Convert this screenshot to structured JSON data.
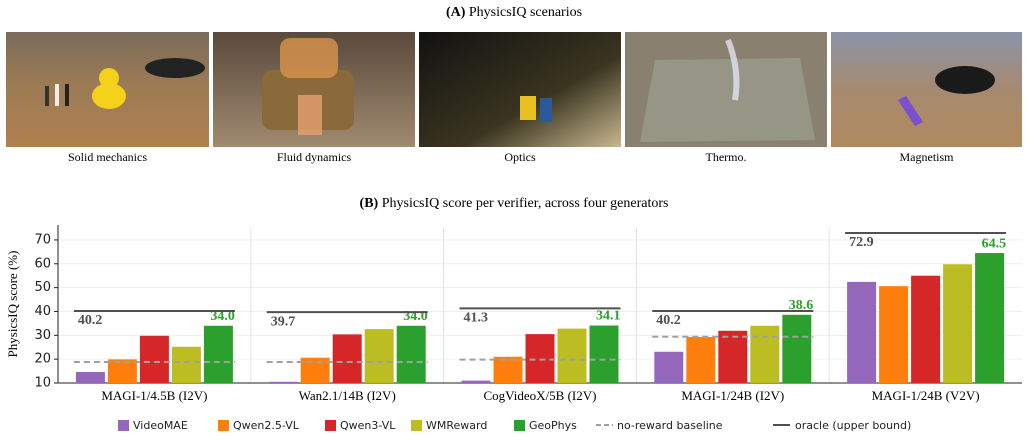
{
  "scenarios": {
    "panel_label": "(A)",
    "title": "PhysicsIQ scenarios",
    "items": [
      "Solid mechanics",
      "Fluid dynamics",
      "Optics",
      "Thermo.",
      "Magnetism"
    ]
  },
  "chart_data": {
    "type": "bar",
    "panel_label": "(B)",
    "title": "PhysicsIQ score per verifier, across four generators",
    "y_label": "PhysicsIQ score (%)",
    "categories": [
      "MAGI-1/4.5B (I2V)",
      "Wan2.1/14B (I2V)",
      "CogVideoX/5B (I2V)",
      "MAGI-1/24B (I2V)",
      "MAGI-1/24B (V2V)"
    ],
    "series": [
      {
        "name": "VideoMAE",
        "color": "#9467bd",
        "mark": "bar",
        "values": [
          14.6,
          10.5,
          11.0,
          23.1,
          52.4
        ]
      },
      {
        "name": "Qwen2.5-VL",
        "color": "#ff7f0e",
        "mark": "bar",
        "values": [
          19.9,
          20.6,
          21.0,
          29.3,
          50.6
        ]
      },
      {
        "name": "Qwen3-VL",
        "color": "#d62728",
        "mark": "bar",
        "values": [
          29.8,
          30.4,
          30.5,
          31.9,
          55.0
        ]
      },
      {
        "name": "WMReward",
        "color": "#bcbd22",
        "mark": "bar",
        "values": [
          25.2,
          32.6,
          32.8,
          34.0,
          59.8
        ]
      },
      {
        "name": "GeoPhys",
        "color": "#2ca02c",
        "mark": "bar",
        "values": [
          34.0,
          34.0,
          34.1,
          38.6,
          64.5
        ],
        "value_labels": [
          "34.0",
          "34.0",
          "34.1",
          "38.6",
          "64.5"
        ]
      },
      {
        "name": "no-reward baseline",
        "color": "#a0a0a0",
        "mark": "dashed-line",
        "values": [
          18.8,
          18.8,
          19.8,
          29.4,
          null
        ]
      },
      {
        "name": "oracle (upper bound)",
        "color": "#505050",
        "mark": "line",
        "values": [
          40.2,
          39.7,
          41.3,
          40.2,
          72.9
        ],
        "show_labels": true
      }
    ],
    "ylim": [
      10,
      75
    ],
    "yticks": [
      10,
      20,
      30,
      40,
      50,
      60,
      70
    ],
    "grid": true
  }
}
